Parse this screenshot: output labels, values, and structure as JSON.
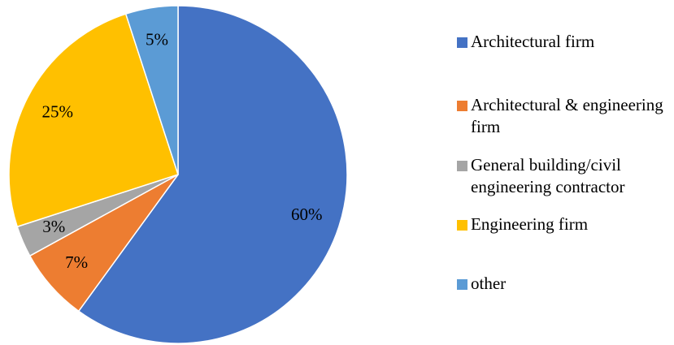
{
  "chart_data": {
    "type": "pie",
    "categories": [
      "Architectural firm",
      "Architectural & engineering firm",
      "General building/civil engineering contractor",
      "Engineering firm",
      "other"
    ],
    "values": [
      60,
      7,
      3,
      25,
      5
    ],
    "value_labels": [
      "60%",
      "7%",
      "3%",
      "25%",
      "5%"
    ],
    "colors": [
      "#4472c4",
      "#ed7d31",
      "#a5a5a5",
      "#ffc000",
      "#5b9bd5"
    ],
    "legend": "right"
  }
}
